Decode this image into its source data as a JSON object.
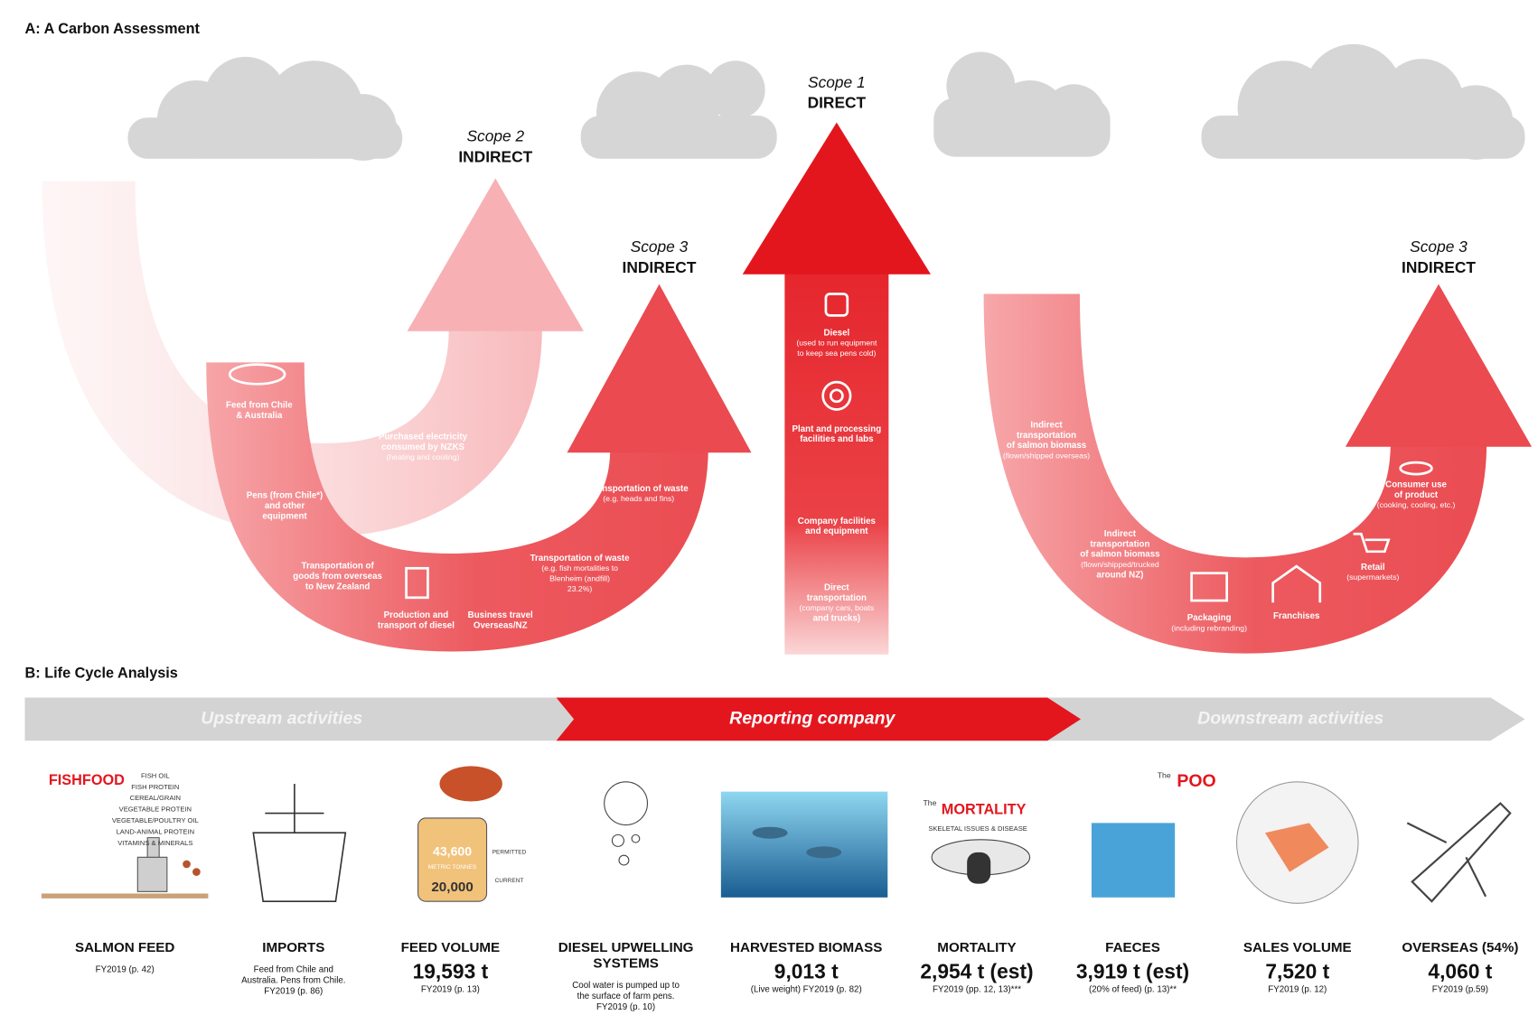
{
  "section_a": {
    "title": "A: A Carbon Assessment",
    "scopes": [
      {
        "scope": "Scope 2",
        "kind": "INDIRECT"
      },
      {
        "scope": "Scope 3",
        "kind": "INDIRECT"
      },
      {
        "scope": "Scope 1",
        "kind": "DIRECT"
      },
      {
        "scope": "Scope 3",
        "kind": "INDIRECT"
      }
    ],
    "items": [
      {
        "lines": [
          "Feed from Chile",
          "& Australia"
        ]
      },
      {
        "lines": [
          "Purchased electricity",
          "consumed by NZKS",
          "(heating and cooling)"
        ]
      },
      {
        "lines": [
          "Pens (from Chile*)",
          "and other",
          "equipment"
        ]
      },
      {
        "lines": [
          "Transportation of",
          "goods from overseas",
          "to New Zealand"
        ]
      },
      {
        "lines": [
          "Production and",
          "transport of diesel"
        ]
      },
      {
        "lines": [
          "Business travel",
          "Overseas/NZ"
        ]
      },
      {
        "lines": [
          "Transportation of waste",
          "(e.g. fish mortalities to",
          "Blenheim (andfill)",
          "23.2%)"
        ]
      },
      {
        "lines": [
          "Transportation of waste",
          "(e.g. heads and fins)"
        ]
      },
      {
        "lines": [
          "Diesel",
          "(used to run equipment",
          "to keep sea pens cold)"
        ]
      },
      {
        "lines": [
          "Plant and processing",
          "facilities and labs"
        ]
      },
      {
        "lines": [
          "Company facilities",
          "and equipment"
        ]
      },
      {
        "lines": [
          "Direct",
          "transportation",
          "(company cars, boats",
          "and trucks)"
        ]
      },
      {
        "lines": [
          "Indirect",
          "transportation",
          "of salmon biomass",
          "(flown/shipped overseas)"
        ]
      },
      {
        "lines": [
          "Indirect",
          "transportation",
          "of salmon biomass",
          "(flown/shipped/trucked",
          "around NZ)"
        ]
      },
      {
        "lines": [
          "Packaging",
          "(including rebranding)"
        ]
      },
      {
        "lines": [
          "Franchises"
        ]
      },
      {
        "lines": [
          "Retail",
          "(supermarkets)"
        ]
      },
      {
        "lines": [
          "Consumer use",
          "of product",
          "(cooking, cooling, etc.)"
        ]
      }
    ]
  },
  "section_b": {
    "title": "B: Life Cycle Analysis",
    "phases": [
      "Upstream activities",
      "Reporting company",
      "Downstream activities"
    ],
    "columns": [
      {
        "title": [
          "SALMON FEED"
        ],
        "notes": [
          "FY2019 (p. 42)"
        ]
      },
      {
        "title": [
          "IMPORTS"
        ],
        "notes": [
          "Feed from Chile and",
          "Australia. Pens from Chile.",
          "FY2019 (p. 86)"
        ]
      },
      {
        "title": [
          "FEED VOLUME"
        ],
        "value": "19,593 t",
        "notes": [
          "FY2019 (p. 13)"
        ]
      },
      {
        "title": [
          "DIESEL UPWELLING",
          "SYSTEMS"
        ],
        "notes": [
          "Cool water is pumped up to",
          "the surface of farm pens.",
          "FY2019 (p. 10)"
        ]
      },
      {
        "title": [
          "HARVESTED BIOMASS"
        ],
        "value": "9,013 t",
        "notes": [
          "(Live weight) FY2019 (p. 82)"
        ]
      },
      {
        "title": [
          "MORTALITY"
        ],
        "value": "2,954 t (est)",
        "notes": [
          "FY2019 (pp. 12, 13)***"
        ]
      },
      {
        "title": [
          "FAECES"
        ],
        "value": "3,919 t (est)",
        "notes": [
          "(20% of feed) (p. 13)**"
        ]
      },
      {
        "title": [
          "SALES VOLUME"
        ],
        "value": "7,520 t",
        "notes": [
          "FY2019 (p. 12)"
        ]
      },
      {
        "title": [
          "OVERSEAS (54%)"
        ],
        "value": "4,060 t",
        "notes": [
          "FY2019 (p.59)"
        ]
      }
    ],
    "illustrations": {
      "fishfood": {
        "brand": "FISHFOOD",
        "ingredients": [
          "FISH OIL",
          "FISH PROTEIN",
          "CEREAL/GRAIN",
          "VEGETABLE PROTEIN",
          "VEGETABLE/POULTRY OIL",
          "LAND-ANIMAL PROTEIN",
          "VITAMINS & MINERALS"
        ]
      },
      "can": [
        "43,600",
        "METRIC TONNES",
        "20,000",
        "PERMITTED",
        "CURRENT"
      ],
      "mortality": [
        "The",
        "MORTALITY",
        "SKELETAL ISSUES & DISEASE"
      ],
      "poo": [
        "The",
        "POO"
      ]
    }
  }
}
